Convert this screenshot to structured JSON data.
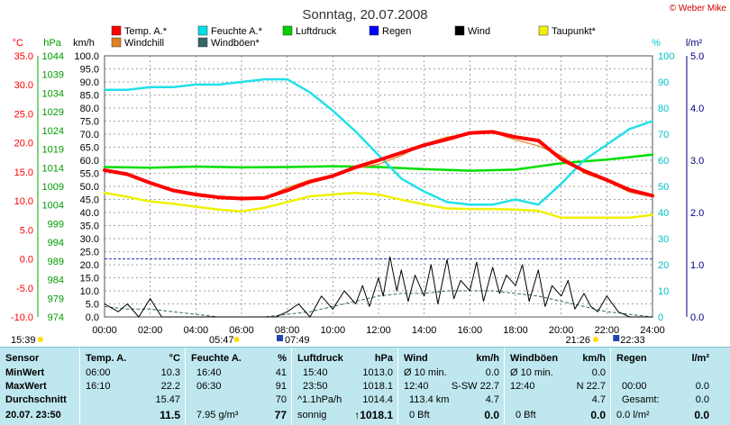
{
  "chart_data": {
    "type": "line",
    "title": "Sonntag, 20.07.2008",
    "credit": "© Weber Mike",
    "x": [
      "00:00",
      "02:00",
      "04:00",
      "06:00",
      "08:00",
      "10:00",
      "12:00",
      "14:00",
      "16:00",
      "18:00",
      "20:00",
      "22:00",
      "24:00"
    ],
    "legend": [
      {
        "name": "Temp. A.*",
        "color": "#ff0000"
      },
      {
        "name": "Feuchte A.*",
        "color": "#00e0e8"
      },
      {
        "name": "Luftdruck",
        "color": "#00d000"
      },
      {
        "name": "Regen",
        "color": "#0000ff"
      },
      {
        "name": "Wind",
        "color": "#000000"
      },
      {
        "name": "Taupunkt*",
        "color": "#f0f000"
      },
      {
        "name": "Windchill",
        "color": "#e08020"
      },
      {
        "name": "Windböen*",
        "color": "#336666"
      }
    ],
    "axes": {
      "temp": {
        "unit": "°C",
        "ticks": [
          "35.0",
          "30.0",
          "25.0",
          "20.0",
          "15.0",
          "10.0",
          "5.0",
          "0.0",
          "-5.0",
          "-10.0"
        ],
        "color": "#ff0000",
        "range": [
          -10,
          35
        ]
      },
      "hpa": {
        "unit": "hPa",
        "ticks": [
          "1044",
          "1039",
          "1034",
          "1029",
          "1024",
          "1019",
          "1014",
          "1009",
          "1004",
          "999",
          "994",
          "989",
          "984",
          "979",
          "974"
        ],
        "color": "#009900",
        "range": [
          974,
          1044
        ]
      },
      "kmh": {
        "unit": "km/h",
        "ticks": [
          "100.0",
          "95.0",
          "90.0",
          "85.0",
          "80.0",
          "75.0",
          "70.0",
          "65.0",
          "60.0",
          "55.0",
          "50.0",
          "45.0",
          "40.0",
          "35.0",
          "30.0",
          "25.0",
          "20.0",
          "15.0",
          "10.0",
          "5.0",
          "0.0"
        ],
        "range": [
          0,
          100
        ]
      },
      "pct": {
        "unit": "%",
        "ticks": [
          "100",
          "90",
          "80",
          "70",
          "60",
          "50",
          "40",
          "30",
          "20",
          "10",
          "0"
        ],
        "color": "#00c8d0",
        "range": [
          0,
          100
        ]
      },
      "rain": {
        "unit": "l/m²",
        "ticks": [
          "5.0",
          "4.0",
          "3.0",
          "2.0",
          "1.0",
          "0.0"
        ],
        "color": "#000080",
        "range": [
          0,
          5
        ]
      }
    },
    "series": [
      {
        "name": "Temp. A.*",
        "x": [
          0,
          1,
          2,
          3,
          4,
          5,
          6,
          7,
          8,
          9,
          10,
          11,
          12,
          13,
          14,
          15,
          16,
          17,
          18,
          19,
          20,
          21,
          22,
          23,
          24
        ],
        "values": [
          15.3,
          14.6,
          13.1,
          11.8,
          11.1,
          10.6,
          10.4,
          10.5,
          11.8,
          13.3,
          14.3,
          15.8,
          17.0,
          18.3,
          19.6,
          20.6,
          21.7,
          21.9,
          21.0,
          20.4,
          17.2,
          15.2,
          13.6,
          11.9,
          10.9
        ]
      },
      {
        "name": "Windchill",
        "x": [
          0,
          1,
          2,
          3,
          4,
          5,
          6,
          7,
          8,
          9,
          10,
          11,
          12,
          13,
          14,
          15,
          16,
          17,
          18,
          19,
          20,
          21,
          22,
          23,
          24
        ],
        "values": [
          15.2,
          14.5,
          13.0,
          11.8,
          11.0,
          10.6,
          10.4,
          10.5,
          12.3,
          13.6,
          14.5,
          15.6,
          16.3,
          17.8,
          19.8,
          21.0,
          21.6,
          21.8,
          20.5,
          19.5,
          17.8,
          14.8,
          13.4,
          11.5,
          10.7
        ]
      },
      {
        "name": "Feuchte A.*",
        "x": [
          0,
          1,
          2,
          3,
          4,
          5,
          6,
          7,
          8,
          9,
          10,
          11,
          12,
          13,
          14,
          15,
          16,
          17,
          18,
          19,
          20,
          21,
          22,
          23,
          24
        ],
        "values": [
          87,
          87,
          88,
          88,
          89,
          89,
          90,
          91,
          91,
          86,
          79,
          71,
          62,
          53,
          48,
          44,
          43,
          43,
          45,
          43,
          51,
          60,
          66,
          72,
          75
        ]
      },
      {
        "name": "Luftdruck",
        "x": [
          0,
          2,
          4,
          6,
          8,
          10,
          12,
          14,
          16,
          18,
          20,
          22,
          24
        ],
        "values": [
          1014.2,
          1014.0,
          1014.3,
          1014.1,
          1014.2,
          1014.4,
          1014.2,
          1013.6,
          1013.2,
          1013.5,
          1015.2,
          1016.2,
          1017.5
        ]
      },
      {
        "name": "Taupunkt*",
        "x": [
          0,
          1,
          2,
          3,
          4,
          5,
          6,
          7,
          8,
          9,
          10,
          11,
          12,
          13,
          14,
          15,
          16,
          17,
          18,
          19,
          20,
          21,
          22,
          23,
          24
        ],
        "values": [
          11.4,
          10.7,
          9.9,
          9.5,
          9.0,
          8.5,
          8.2,
          8.8,
          9.8,
          10.8,
          11.1,
          11.4,
          11.1,
          10.2,
          9.4,
          8.7,
          8.6,
          8.6,
          8.5,
          8.3,
          7.1,
          7.1,
          7.1,
          7.1,
          7.6
        ]
      },
      {
        "name": "Wind",
        "x": [
          0,
          0.6,
          1,
          1.5,
          2,
          2.5,
          3,
          3.5,
          4,
          4.5,
          5,
          5.5,
          6,
          6.5,
          7,
          7.5,
          8,
          8.5,
          9,
          9.5,
          10,
          10.5,
          11,
          11.3,
          11.6,
          12,
          12.2,
          12.5,
          12.8,
          13,
          13.3,
          13.6,
          14,
          14.3,
          14.6,
          15,
          15.3,
          15.6,
          16,
          16.3,
          16.6,
          17,
          17.3,
          17.6,
          18,
          18.3,
          18.6,
          19,
          19.3,
          19.6,
          20,
          20.3,
          20.6,
          21,
          21.3,
          21.6,
          22,
          22.5,
          23,
          23.5,
          24
        ],
        "values": [
          5,
          2,
          5,
          0,
          7,
          0,
          0,
          0,
          0,
          0,
          0,
          0,
          0,
          0,
          0,
          0,
          2,
          5,
          0,
          8,
          3,
          10,
          5,
          12,
          4,
          15,
          8,
          23,
          10,
          18,
          6,
          16,
          8,
          20,
          5,
          22,
          7,
          14,
          10,
          21,
          6,
          19,
          9,
          16,
          12,
          20,
          6,
          18,
          4,
          12,
          8,
          14,
          3,
          9,
          4,
          2,
          8,
          2,
          0,
          0,
          0
        ]
      },
      {
        "name": "Windböen*",
        "x": [
          0,
          1,
          2,
          3,
          4,
          5,
          6,
          7,
          8,
          9,
          10,
          11,
          12,
          13,
          14,
          15,
          16,
          17,
          18,
          19,
          20,
          21,
          22,
          23,
          24
        ],
        "values": [
          4,
          3,
          3,
          2,
          1,
          0,
          0,
          0,
          1,
          2,
          4,
          6,
          8,
          9,
          9,
          10,
          10,
          10,
          9,
          8,
          6,
          4,
          2,
          1,
          0
        ]
      }
    ],
    "markers": {
      "left_time": "15:39",
      "sunrise": "05:47",
      "moonrise": "07:49",
      "sunset": "21:26",
      "moonset": "22:33"
    },
    "grid": true
  },
  "table": {
    "header": {
      "sensor": "Sensor",
      "temp": "Temp. A.",
      "temp_u": "°C",
      "hum": "Feuchte A.",
      "hum_u": "%",
      "press": "Luftdruck",
      "press_u": "hPa",
      "wind": "Wind",
      "wind_u": "km/h",
      "gust": "Windböen",
      "gust_u": "km/h",
      "rain": "Regen",
      "rain_u": "l/m²"
    },
    "min": {
      "label": "MinWert",
      "temp_t": "06:00",
      "temp_v": "10.3",
      "hum_t": "16:40",
      "hum_v": "41",
      "press_t": "15:40",
      "press_v": "1013.0",
      "wind_l": "Ø 10 min.",
      "wind_v": "0.0",
      "gust_l": "Ø 10 min.",
      "gust_v": "0.0"
    },
    "max": {
      "label": "MaxWert",
      "temp_t": "16:10",
      "temp_v": "22.2",
      "hum_t": "06:30",
      "hum_v": "91",
      "press_t": "23:50",
      "press_v": "1018.1",
      "wind_t": "12:40",
      "wind_d": "S-SW 22.7",
      "gust_t": "12:40",
      "gust_d": "N 22.7",
      "rain_t": "00:00",
      "rain_v": "0.0"
    },
    "avg": {
      "label": "Durchschnitt",
      "temp_v": "15.47",
      "hum_v": "70",
      "press_l": "^1.1hPa/h",
      "press_v": "1014.4",
      "wind_l": "113.4 km",
      "wind_v": "4.7",
      "gust_v": "4.7",
      "rain_l": "Gesamt:",
      "rain_v": "0.0"
    },
    "now": {
      "label": "20.07. 23:50",
      "temp_v": "11.5",
      "hum_l": "7.95 g/m³",
      "hum_v": "77",
      "press_l": "sonnig",
      "press_v": "↑1018.1",
      "wind_l": "0 Bft",
      "wind_v": "0.0",
      "gust_l": "0 Bft",
      "gust_v": "0.0",
      "rain_l": "0.0 l/m²",
      "rain_v": "0.0"
    }
  }
}
